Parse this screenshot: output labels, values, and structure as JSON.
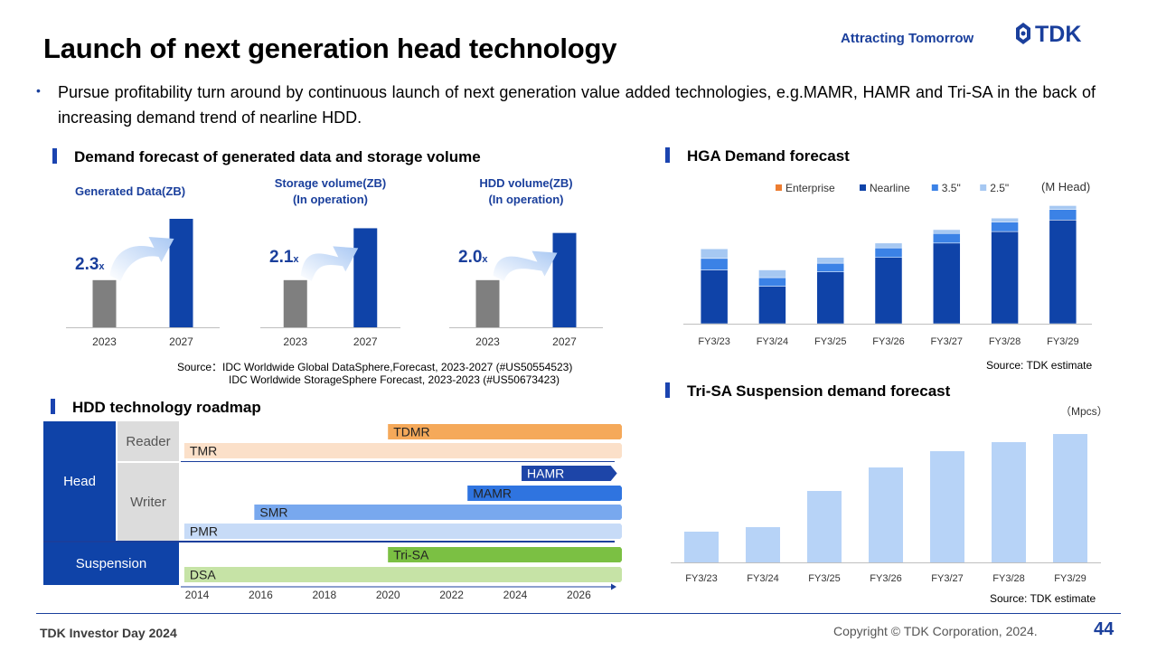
{
  "header": {
    "title": "Launch of next generation head technology",
    "tagline": "Attracting Tomorrow",
    "logo_text": "TDK"
  },
  "bullet": "Pursue profitability turn around by continuous launch of next generation value added technologies, e.g.MAMR, HAMR and Tri-SA in the back of increasing demand trend of nearline HDD.",
  "sections": {
    "demand": "Demand forecast of generated data and storage volume",
    "hga": "HGA Demand forecast",
    "roadmap": "HDD technology roadmap",
    "trisa": "Tri-SA Suspension demand forecast"
  },
  "demand_source": {
    "line1": "Source：IDC  Worldwide  Global  DataSphere,Forecast,  2023-2027  (#US50554523)",
    "line2": "IDC  Worldwide  StorageSphere  Forecast,  2023-2023  (#US50673423)"
  },
  "hga_source": "Source: TDK estimate",
  "trisa_source": "Source: TDK estimate",
  "roadmap": {
    "rows": {
      "head": "Head",
      "reader": "Reader",
      "writer": "Writer",
      "suspension": "Suspension"
    },
    "bars": [
      {
        "label": "TDMR",
        "start": 2020,
        "end": 2027.5,
        "color": "#f5a95a",
        "lane": "reader1"
      },
      {
        "label": "TMR",
        "start": 2013.6,
        "end": 2027.5,
        "color": "#fbe0c9",
        "lane": "reader2"
      },
      {
        "label": "HAMR",
        "start": 2024.2,
        "end": 2027.2,
        "color": "#1d45a8",
        "lane": "writer1",
        "light_text": true
      },
      {
        "label": "MAMR",
        "start": 2022.5,
        "end": 2027.5,
        "color": "#2f74e0",
        "lane": "writer2"
      },
      {
        "label": "SMR",
        "start": 2015.8,
        "end": 2027.5,
        "color": "#78a8ee",
        "lane": "writer3"
      },
      {
        "label": "PMR",
        "start": 2013.6,
        "end": 2027.5,
        "color": "#c7dbf7",
        "lane": "writer4"
      },
      {
        "label": "Tri-SA",
        "start": 2020,
        "end": 2027.5,
        "color": "#7bc043",
        "lane": "susp1"
      },
      {
        "label": "DSA",
        "start": 2013.6,
        "end": 2027.5,
        "color": "#c6e3a6",
        "lane": "susp2"
      }
    ],
    "axis": [
      "2014",
      "2016",
      "2018",
      "2020",
      "2022",
      "2024",
      "2026"
    ]
  },
  "chart_data": [
    {
      "type": "bar",
      "title": "Generated Data(ZB)",
      "categories": [
        "2023",
        "2027"
      ],
      "values": [
        1.0,
        2.3
      ],
      "multiplier_label": "2.3",
      "multiplier_suffix": "x"
    },
    {
      "type": "bar",
      "title": "Storage volume(ZB) (In operation)",
      "title_line1": "Storage volume(ZB)",
      "title_line2": "(In operation)",
      "categories": [
        "2023",
        "2027"
      ],
      "values": [
        1.0,
        2.1
      ],
      "multiplier_label": "2.1",
      "multiplier_suffix": "x"
    },
    {
      "type": "bar",
      "title": "HDD volume(ZB) (In operation)",
      "title_line1": "HDD volume(ZB)",
      "title_line2": "(In operation)",
      "categories": [
        "2023",
        "2027"
      ],
      "values": [
        1.0,
        2.0
      ],
      "multiplier_label": "2.0",
      "multiplier_suffix": "x"
    },
    {
      "type": "bar",
      "stacked": true,
      "title": "HGA Demand forecast",
      "unit": "(M Head)",
      "categories": [
        "FY3/23",
        "FY3/24",
        "FY3/25",
        "FY3/26",
        "FY3/27",
        "FY3/28",
        "FY3/29"
      ],
      "series": [
        {
          "name": "Enterprise",
          "color": "#ed7d31",
          "values": [
            0,
            0,
            0,
            0,
            0,
            0,
            0
          ]
        },
        {
          "name": "Nearline",
          "color": "#0f43a8",
          "values": [
            56,
            39,
            54,
            69,
            84,
            96,
            108
          ]
        },
        {
          "name": "3.5\"",
          "color": "#3b82e6",
          "values": [
            12,
            9,
            9,
            10,
            10,
            10,
            11
          ]
        },
        {
          "name": "2.5\"",
          "color": "#a6c8f2",
          "values": [
            10,
            8,
            6,
            5,
            4,
            4,
            4
          ]
        }
      ],
      "ylim": [
        0,
        130
      ]
    },
    {
      "type": "bar",
      "title": "Tri-SA Suspension demand forecast",
      "unit": "（Mpcs）",
      "categories": [
        "FY3/23",
        "FY3/24",
        "FY3/25",
        "FY3/26",
        "FY3/27",
        "FY3/28",
        "FY3/29"
      ],
      "values": [
        34,
        39,
        79,
        105,
        123,
        133,
        142
      ],
      "color": "#b7d3f7",
      "ylim": [
        0,
        150
      ]
    }
  ],
  "footer": {
    "left": "TDK Investor Day 2024",
    "copyright": "Copyright  © TDK Corporation, 2024.",
    "page": "44"
  }
}
